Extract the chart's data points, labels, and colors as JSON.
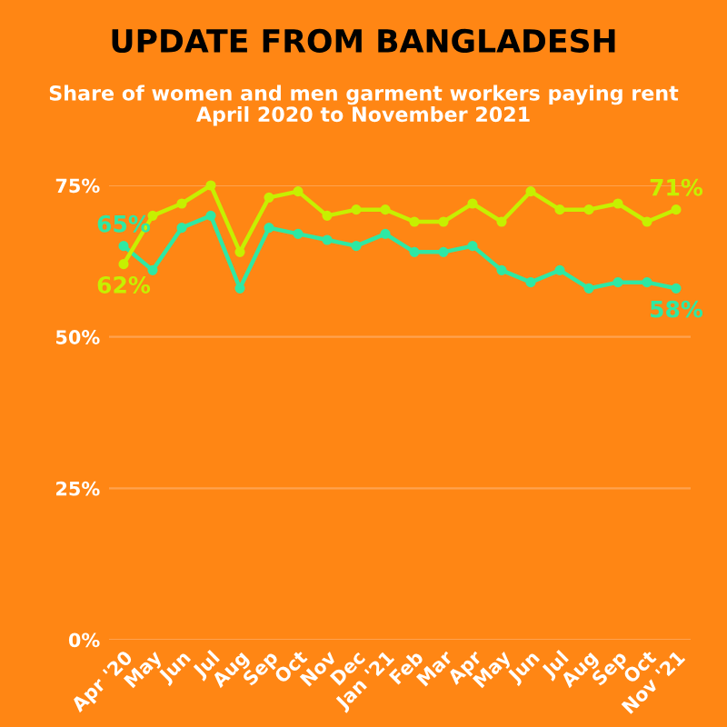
{
  "chart_data": {
    "type": "line",
    "title": "UPDATE FROM BANGLADESH",
    "subtitle": "Share of women and men garment workers paying rent\nApril 2020 to November 2021",
    "categories": [
      "Apr '20",
      "May",
      "Jun",
      "Jul",
      "Aug",
      "Sep",
      "Oct",
      "Nov",
      "Dec",
      "Jan '21",
      "Feb",
      "Mar",
      "Apr",
      "May",
      "Jun",
      "Jul",
      "Aug",
      "Sep",
      "Oct",
      "Nov '21"
    ],
    "series": [
      {
        "color": "#2ee8a4",
        "values": [
          65,
          61,
          68,
          70,
          58,
          68,
          67,
          66,
          65,
          67,
          64,
          64,
          65,
          61,
          59,
          61,
          58,
          59,
          59,
          58
        ],
        "value_labels": [
          "65%",
          null,
          null,
          null,
          null,
          null,
          null,
          null,
          null,
          null,
          null,
          null,
          null,
          null,
          null,
          null,
          null,
          null,
          null,
          "58%"
        ]
      },
      {
        "color": "#c6f000",
        "values": [
          62,
          70,
          72,
          75,
          64,
          73,
          74,
          70,
          71,
          71,
          69,
          69,
          72,
          69,
          74,
          71,
          71,
          72,
          69,
          71
        ],
        "value_labels": [
          "62%",
          null,
          null,
          null,
          null,
          null,
          null,
          null,
          null,
          null,
          null,
          null,
          null,
          null,
          null,
          null,
          null,
          null,
          null,
          "71%"
        ]
      }
    ],
    "ylim": [
      0,
      75
    ],
    "yticks": [
      {
        "value": 0,
        "label": "0%"
      },
      {
        "value": 25,
        "label": "25%"
      },
      {
        "value": 50,
        "label": "50%"
      },
      {
        "value": 75,
        "label": "75%"
      }
    ],
    "grid": "y",
    "marker": "circle",
    "line_style": "solid",
    "legend": false
  }
}
